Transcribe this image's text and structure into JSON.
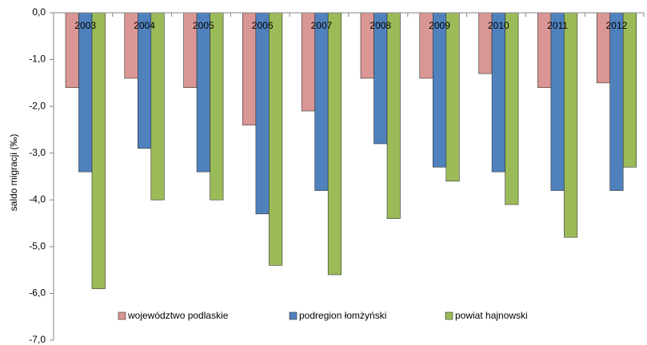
{
  "chart_data": {
    "type": "bar",
    "y_label": "saldo migracji (‰)",
    "categories": [
      "2003",
      "2004",
      "2005",
      "2006",
      "2007",
      "2008",
      "2009",
      "2010",
      "2011",
      "2012"
    ],
    "series": [
      {
        "name": "województwo podlaskie",
        "color": "#d99694",
        "values": [
          -1.6,
          -1.4,
          -1.6,
          -2.4,
          -2.1,
          -1.4,
          -1.4,
          -1.3,
          -1.6,
          -1.5
        ]
      },
      {
        "name": "podregion łomżyński",
        "color": "#4f81bd",
        "values": [
          -3.4,
          -2.9,
          -3.4,
          -4.3,
          -3.8,
          -2.8,
          -3.3,
          -3.4,
          -3.8,
          -3.8
        ]
      },
      {
        "name": "powiat hajnowski",
        "color": "#9bbb59",
        "values": [
          -5.9,
          -4.0,
          -4.0,
          -5.4,
          -5.6,
          -4.4,
          -3.6,
          -4.1,
          -4.8,
          -3.3
        ]
      }
    ],
    "ylim": [
      -7,
      0
    ],
    "yticks": [
      {
        "value": 0,
        "label": "0,0"
      },
      {
        "value": -1,
        "label": "-1,0"
      },
      {
        "value": -2,
        "label": "-2,0"
      },
      {
        "value": -3,
        "label": "-3,0"
      },
      {
        "value": -4,
        "label": "-4,0"
      },
      {
        "value": -5,
        "label": "-5,0"
      },
      {
        "value": -6,
        "label": "-6,0"
      },
      {
        "value": -7,
        "label": "-7,0"
      }
    ],
    "grid": false,
    "legend": "bottom"
  }
}
